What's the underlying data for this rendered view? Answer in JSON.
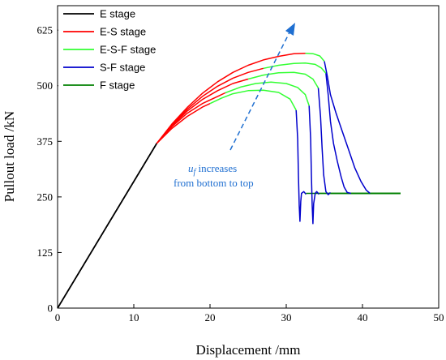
{
  "chart_data": {
    "type": "line",
    "xlabel": "Displacement /mm",
    "ylabel": "Pullout load /kN",
    "xlim": [
      0,
      50
    ],
    "ylim": [
      0,
      680
    ],
    "xticks": [
      0,
      10,
      20,
      30,
      40,
      50
    ],
    "yticks": [
      0,
      125,
      250,
      375,
      500,
      625
    ],
    "legend_position": "top-left",
    "legend": [
      {
        "name": "E stage",
        "color": "#000000"
      },
      {
        "name": "E-S stage",
        "color": "#ff0000"
      },
      {
        "name": "E-S-F stage",
        "color": "#33ff33"
      },
      {
        "name": "S-F stage",
        "color": "#0000cc"
      },
      {
        "name": "F stage",
        "color": "#008000"
      }
    ],
    "annotation": {
      "symbol": "u",
      "subscript": "f",
      "line1": " increases",
      "line2": "from bottom to top",
      "color": "#1f6fd1"
    },
    "curves": [
      {
        "e": [
          [
            0,
            0
          ],
          [
            13,
            370
          ]
        ],
        "es": [
          [
            13,
            370
          ],
          [
            15,
            404
          ],
          [
            17,
            431
          ],
          [
            19,
            452
          ],
          [
            20,
            460
          ]
        ],
        "esf": [
          [
            20,
            460
          ],
          [
            21.5,
            472
          ],
          [
            23,
            482
          ],
          [
            25,
            489
          ],
          [
            27,
            490
          ],
          [
            29,
            485
          ],
          [
            30.5,
            470
          ],
          [
            31.3,
            445
          ]
        ],
        "sf": [
          [
            31.3,
            445
          ],
          [
            31.5,
            380
          ],
          [
            31.6,
            300
          ],
          [
            31.7,
            230
          ],
          [
            31.8,
            195
          ],
          [
            31.9,
            240
          ],
          [
            32,
            258
          ],
          [
            32.3,
            262
          ],
          [
            32.6,
            256
          ]
        ],
        "f": [
          [
            32.6,
            258
          ],
          [
            45,
            258
          ]
        ]
      },
      {
        "e": [
          [
            0,
            0
          ],
          [
            13,
            370
          ]
        ],
        "es": [
          [
            13,
            370
          ],
          [
            15,
            408
          ],
          [
            17,
            438
          ],
          [
            19,
            460
          ],
          [
            21,
            476
          ],
          [
            22,
            484
          ]
        ],
        "esf": [
          [
            22,
            484
          ],
          [
            24,
            497
          ],
          [
            26,
            505
          ],
          [
            28,
            508
          ],
          [
            30,
            505
          ],
          [
            31.5,
            496
          ],
          [
            32.5,
            480
          ],
          [
            33,
            455
          ]
        ],
        "sf": [
          [
            33,
            455
          ],
          [
            33.2,
            380
          ],
          [
            33.3,
            300
          ],
          [
            33.4,
            230
          ],
          [
            33.5,
            190
          ],
          [
            33.6,
            235
          ],
          [
            33.8,
            258
          ],
          [
            34,
            262
          ],
          [
            34.3,
            256
          ]
        ],
        "f": [
          [
            34.3,
            258
          ],
          [
            45,
            258
          ]
        ]
      },
      {
        "e": [
          [
            0,
            0
          ],
          [
            13,
            370
          ]
        ],
        "es": [
          [
            13,
            370
          ],
          [
            15,
            410
          ],
          [
            17,
            443
          ],
          [
            19,
            469
          ],
          [
            21,
            489
          ],
          [
            23,
            505
          ],
          [
            25,
            515
          ]
        ],
        "esf": [
          [
            25,
            515
          ],
          [
            27,
            524
          ],
          [
            29,
            529
          ],
          [
            31,
            530
          ],
          [
            32.5,
            526
          ],
          [
            33.5,
            515
          ],
          [
            34.2,
            495
          ]
        ],
        "sf": [
          [
            34.2,
            495
          ],
          [
            34.5,
            430
          ],
          [
            34.7,
            360
          ],
          [
            34.9,
            300
          ],
          [
            35.2,
            262
          ],
          [
            35.5,
            255
          ],
          [
            35.8,
            260
          ]
        ],
        "f": [
          [
            35.8,
            258
          ],
          [
            45,
            258
          ]
        ]
      },
      {
        "e": [
          [
            0,
            0
          ],
          [
            13,
            370
          ]
        ],
        "es": [
          [
            13,
            370
          ],
          [
            15,
            412
          ],
          [
            17,
            447
          ],
          [
            19,
            476
          ],
          [
            21,
            499
          ],
          [
            23,
            517
          ],
          [
            25,
            530
          ],
          [
            27,
            539
          ]
        ],
        "esf": [
          [
            27,
            539
          ],
          [
            29,
            546
          ],
          [
            31,
            550
          ],
          [
            32.5,
            551
          ],
          [
            33.8,
            548
          ],
          [
            34.6,
            540
          ],
          [
            35.2,
            528
          ]
        ],
        "sf": [
          [
            35.2,
            528
          ],
          [
            35.5,
            480
          ],
          [
            35.8,
            420
          ],
          [
            36.2,
            370
          ],
          [
            36.7,
            330
          ],
          [
            37.2,
            295
          ],
          [
            37.6,
            272
          ],
          [
            38,
            260
          ],
          [
            38.5,
            258
          ]
        ],
        "f": [
          [
            38.5,
            258
          ],
          [
            45,
            258
          ]
        ]
      },
      {
        "e": [
          [
            0,
            0
          ],
          [
            13,
            370
          ]
        ],
        "es": [
          [
            13,
            370
          ],
          [
            15,
            414
          ],
          [
            17,
            451
          ],
          [
            19,
            483
          ],
          [
            21,
            509
          ],
          [
            23,
            530
          ],
          [
            25,
            546
          ],
          [
            27,
            558
          ],
          [
            29,
            566
          ],
          [
            31,
            572
          ],
          [
            32.5,
            573
          ]
        ],
        "esf": [
          [
            32.5,
            573
          ],
          [
            33.5,
            572
          ],
          [
            34.4,
            567
          ],
          [
            35,
            555
          ]
        ],
        "sf": [
          [
            35,
            555
          ],
          [
            35.4,
            520
          ],
          [
            35.8,
            480
          ],
          [
            36.5,
            440
          ],
          [
            37.3,
            400
          ],
          [
            38.2,
            355
          ],
          [
            39,
            315
          ],
          [
            39.8,
            285
          ],
          [
            40.5,
            265
          ],
          [
            41,
            258
          ]
        ],
        "f": [
          [
            41,
            258
          ],
          [
            45,
            258
          ]
        ]
      }
    ]
  }
}
